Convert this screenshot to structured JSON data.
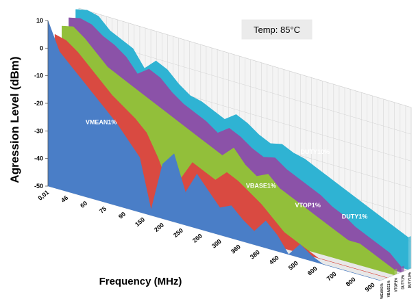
{
  "chart_data": {
    "type": "area",
    "title": "",
    "xlabel": "Frequency (MHz)",
    "ylabel": "Agression Level (dBm)",
    "ylim": [
      -50,
      10
    ],
    "y_ticks": [
      "10",
      "0",
      "-10",
      "-20",
      "-30",
      "-40",
      "-50"
    ],
    "x_tick_labels": [
      "0,01",
      "46",
      "60",
      "75",
      "90",
      "150",
      "200",
      "250",
      "260",
      "300",
      "360",
      "380",
      "450",
      "500",
      "600",
      "700",
      "800",
      "900"
    ],
    "grid": true,
    "annotation": "Temp: 85°C",
    "depth_axis_labels": [
      "VMEAN1%",
      "VBASE1%",
      "VTOP1%",
      "DUTY1%",
      "DUTY10%"
    ],
    "series": [
      {
        "name": "DUTY10%",
        "color": "#2fb3d3",
        "values": [
          10,
          11,
          10,
          6,
          4,
          2,
          -4,
          0,
          -2,
          -6,
          -9,
          -10,
          -12,
          -14,
          -11,
          -13,
          -16,
          -18,
          -17,
          -19,
          -20,
          -22,
          -24,
          -26,
          -28,
          -30,
          -32,
          -34,
          -36,
          -38
        ]
      },
      {
        "name": "DUTY1%",
        "color": "#8b52a8",
        "values": [
          8,
          9,
          8,
          5,
          3,
          0,
          -5,
          -2,
          -4,
          -8,
          -11,
          -13,
          -15,
          -18,
          -15,
          -17,
          -20,
          -22,
          -21,
          -24,
          -26,
          -28,
          -30,
          -33,
          -35,
          -38,
          -40,
          -42,
          -44,
          -48
        ]
      },
      {
        "name": "VTOP1%",
        "color": "#92bf3a",
        "values": [
          6,
          7,
          4,
          0,
          -4,
          -6,
          -8,
          -10,
          -12,
          -14,
          -16,
          -18,
          -20,
          -22,
          -24,
          -20,
          -25,
          -28,
          -26,
          -30,
          -32,
          -34,
          -36,
          -38,
          -40,
          -42,
          -42,
          -44,
          -46,
          -48
        ]
      },
      {
        "name": "VBASE1%",
        "color": "#d94a41",
        "values": [
          4,
          3,
          0,
          -4,
          -8,
          -12,
          -15,
          -18,
          -22,
          -30,
          -40,
          -35,
          -28,
          -30,
          -32,
          -28,
          -30,
          -33,
          -36,
          -40,
          -44,
          -46,
          -48,
          -50,
          -50,
          -50,
          -50,
          -50,
          -50,
          -50
        ]
      },
      {
        "name": "VMEAN1%",
        "color": "#4a7ec7",
        "values": [
          10,
          0,
          -4,
          -8,
          -12,
          -16,
          -20,
          -25,
          -30,
          -48,
          -30,
          -25,
          -38,
          -30,
          -35,
          -40,
          -38,
          -42,
          -45,
          -40,
          -44,
          -50,
          -45,
          -48,
          -50,
          -50,
          -50,
          -50,
          -50,
          -50
        ]
      }
    ]
  }
}
